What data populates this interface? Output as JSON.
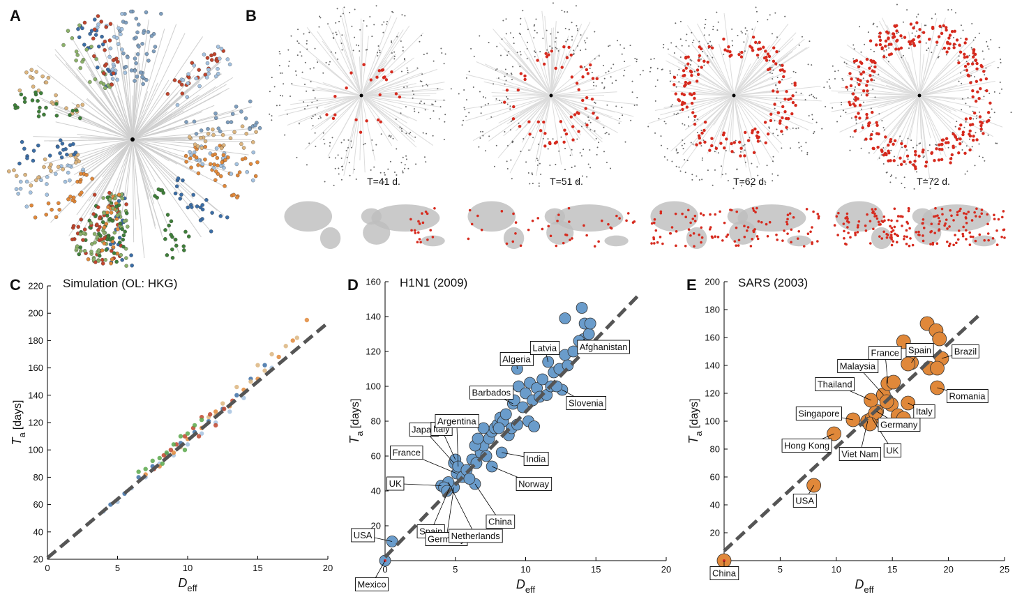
{
  "panel_letters": [
    "A",
    "B",
    "C",
    "D",
    "E"
  ],
  "time_labels": [
    "T=41 d.",
    "T=51 d.",
    "T=62 d.",
    "T=72 d."
  ],
  "chart_data": [
    {
      "type": "scatter",
      "title": "Simulation (OL: HKG)",
      "xlabel_main": "D",
      "xlabel_sub": "eff",
      "ylabel_main": "T",
      "ylabel_sub": "a",
      "ylabel_unit": "[days]",
      "xlim": [
        0,
        20
      ],
      "ylim": [
        20,
        220
      ],
      "xticks": [
        0,
        5,
        10,
        15,
        20
      ],
      "yticks": [
        20,
        40,
        60,
        80,
        100,
        120,
        140,
        160,
        180,
        200,
        220
      ],
      "fit_line": {
        "color": "#555555",
        "x": [
          0,
          20
        ],
        "y": [
          21,
          193
        ]
      },
      "series": [
        {
          "color": "#3c6ea6",
          "x": [
            4.5,
            5.5,
            6.5,
            7.5,
            8.5,
            9.5,
            10.5,
            11.5,
            12.5,
            13.5,
            14.5,
            15.5
          ],
          "y": [
            60,
            68,
            80,
            88,
            97,
            105,
            113,
            121,
            130,
            140,
            152,
            162
          ]
        },
        {
          "color": "#a4c2e0",
          "x": [
            4.0,
            5.0,
            6.0,
            7.0,
            8.0,
            9.0,
            10.0,
            11.0,
            12.0,
            13.0,
            14.0,
            16.0
          ],
          "y": [
            55,
            62,
            72,
            80,
            90,
            96,
            104,
            112,
            120,
            128,
            138,
            160
          ]
        },
        {
          "color": "#e0883a",
          "x": [
            7.0,
            8.0,
            9.0,
            10.0,
            11.0,
            12.0,
            13.0,
            14.0,
            15.0,
            16.5,
            17.5,
            18.5
          ],
          "y": [
            82,
            88,
            98,
            108,
            116,
            128,
            132,
            144,
            152,
            168,
            180,
            195
          ]
        },
        {
          "color": "#dcb57f",
          "x": [
            8.5,
            9.5,
            11.5,
            12.5,
            13.5,
            14.5,
            15.5,
            16.0,
            17.0,
            17.8,
            12.0,
            15.0
          ],
          "y": [
            95,
            102,
            124,
            134,
            146,
            150,
            158,
            170,
            176,
            182,
            125,
            162
          ]
        },
        {
          "color": "#c0452d",
          "x": [
            8.3,
            9.2,
            10.4,
            11.0,
            12.0,
            9.8,
            13.2,
            7.6,
            10.8,
            11.6,
            8.8,
            12.6
          ],
          "y": [
            96,
            104,
            116,
            124,
            118,
            110,
            136,
            86,
            110,
            126,
            100,
            130
          ]
        },
        {
          "color": "#5aa84b",
          "x": [
            6.5,
            7.0,
            7.5,
            8.0,
            8.5,
            9.0,
            9.5,
            10.0,
            10.5,
            11.0,
            9.8,
            8.2
          ],
          "y": [
            84,
            86,
            92,
            94,
            98,
            104,
            110,
            112,
            118,
            122,
            100,
            90
          ]
        }
      ]
    },
    {
      "type": "scatter",
      "title": "H1N1 (2009)",
      "xlabel_main": "D",
      "xlabel_sub": "eff",
      "ylabel_main": "T",
      "ylabel_sub": "a",
      "ylabel_unit": "[days]",
      "xlim": [
        0,
        20
      ],
      "ylim": [
        0,
        160
      ],
      "xticks": [
        0,
        5,
        10,
        15,
        20
      ],
      "yticks": [
        20,
        40,
        60,
        80,
        100,
        120,
        140,
        160
      ],
      "fit_line": {
        "color": "#555555",
        "x": [
          0,
          18
        ],
        "y": [
          2,
          152
        ]
      },
      "origin_color": "#d62728",
      "series": [
        {
          "color": "#6a9ccb",
          "labels": [
            "Mexico",
            "USA",
            "UK",
            "France",
            "Japan",
            "Italy",
            "Argentina",
            "Spain",
            "Germany",
            "Netherlands",
            "China",
            "Norway",
            "India",
            "Barbados",
            "Algeria",
            "Latvia",
            "Afghanistan",
            "Slovenia",
            null,
            null,
            null,
            null,
            null,
            null,
            null,
            null,
            null,
            null,
            null,
            null,
            null,
            null,
            null,
            null,
            null,
            null,
            null,
            null,
            null,
            null,
            null,
            null,
            null,
            null,
            null,
            null,
            null,
            null,
            null,
            null,
            null,
            null,
            null,
            null,
            null,
            null,
            null,
            null,
            null,
            null,
            null,
            null,
            null,
            null,
            null
          ],
          "x": [
            0,
            0.5,
            4.0,
            5.1,
            4.9,
            5.0,
            5.2,
            4.6,
            4.9,
            4.5,
            6.4,
            7.6,
            8.3,
            9.1,
            9.4,
            11.6,
            14.1,
            12.6,
            4.2,
            4.4,
            5.5,
            5.8,
            6.0,
            6.2,
            6.5,
            6.8,
            7.0,
            7.2,
            7.4,
            7.6,
            7.8,
            8.0,
            8.2,
            8.4,
            8.6,
            8.8,
            9.0,
            9.2,
            9.5,
            9.8,
            10.0,
            10.3,
            10.5,
            10.8,
            11.0,
            11.2,
            11.5,
            11.8,
            12.0,
            12.2,
            12.4,
            12.8,
            13.0,
            13.4,
            13.8,
            14.2,
            14.5,
            14.0,
            14.6,
            12.8,
            7.0,
            8.1,
            9.4,
            10.2,
            10.6,
            6.4,
            6.6
          ],
          "y": [
            0,
            11,
            43,
            50,
            56,
            58,
            54,
            42,
            42,
            45,
            44,
            54,
            62,
            90,
            110,
            114,
            127,
            98,
            42,
            40,
            48,
            52,
            47,
            58,
            56,
            62,
            66,
            60,
            70,
            74,
            76,
            78,
            82,
            80,
            84,
            72,
            76,
            92,
            100,
            88,
            96,
            102,
            92,
            99,
            94,
            104,
            95,
            100,
            108,
            100,
            110,
            118,
            112,
            120,
            126,
            136,
            130,
            145,
            136,
            139,
            76,
            76,
            78,
            80,
            77,
            66,
            70
          ]
        }
      ]
    },
    {
      "type": "scatter",
      "title": "SARS (2003)",
      "xlabel_main": "D",
      "xlabel_sub": "eff",
      "ylabel_main": "T",
      "ylabel_sub": "a",
      "ylabel_unit": "[days]",
      "xlim": [
        0,
        25
      ],
      "ylim": [
        0,
        200
      ],
      "xticks": [
        5,
        10,
        15,
        20,
        25
      ],
      "yticks": [
        20,
        40,
        60,
        80,
        100,
        120,
        140,
        160,
        180,
        200
      ],
      "fit_line": {
        "color": "#555555",
        "x": [
          0,
          23
        ],
        "y": [
          7,
          178
        ]
      },
      "origin_color": "#d62728",
      "series": [
        {
          "color": "#e0883a",
          "labels": [
            "China",
            "USA",
            "Hong Kong",
            "Singapore",
            "Viet Nam",
            "UK",
            "Germany",
            "Thailand",
            "Malaysia",
            "France",
            "Spain",
            "Brazil",
            "Italy",
            "Romania",
            null,
            null,
            null,
            null,
            null,
            null,
            null,
            null,
            null,
            null,
            null,
            null,
            null,
            null
          ],
          "x": [
            0,
            8,
            9.8,
            11.5,
            12.8,
            13.2,
            13.6,
            13.1,
            14.2,
            14.6,
            16.7,
            19.4,
            16.4,
            19.0,
            18.1,
            18.9,
            19.2,
            18.3,
            16.4,
            16.0,
            15.1,
            14.9,
            15.5,
            16.0,
            14.5,
            13.5,
            13.0,
            19.0
          ],
          "y": [
            0,
            54,
            91,
            101,
            100,
            102,
            107,
            115,
            119,
            127,
            142,
            145,
            113,
            124,
            170,
            165,
            159,
            138,
            141,
            157,
            128,
            112,
            104,
            102,
            114,
            106,
            98,
            138
          ]
        }
      ]
    }
  ]
}
